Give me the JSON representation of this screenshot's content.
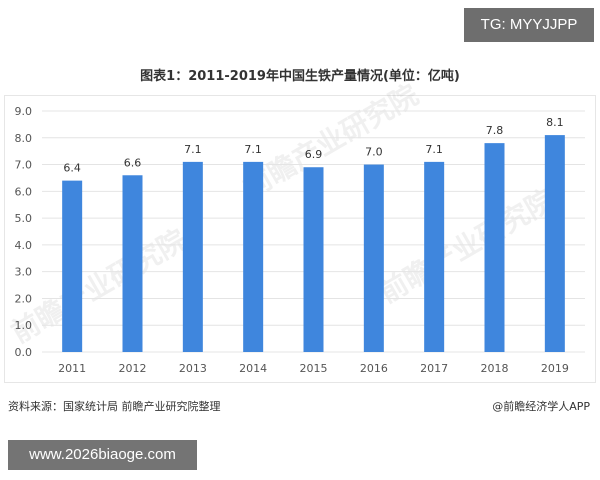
{
  "badges": {
    "telegram": "TG: MYYJJPP",
    "site": "www.2026biaoge.com"
  },
  "footer": {
    "source": "资料来源：国家统计局 前瞻产业研究院整理",
    "brand": "@前瞻经济学人APP"
  },
  "watermark": {
    "text": "前瞻产业研究院"
  },
  "colors": {
    "bar": "#3f86dd",
    "grid": "#e4e4e4",
    "axis_text": "#555555",
    "label_text": "#333333"
  },
  "chart_data": {
    "type": "bar",
    "title": "图表1：2011-2019年中国生铁产量情况(单位：亿吨)",
    "xlabel": "",
    "ylabel": "",
    "categories": [
      "2011",
      "2012",
      "2013",
      "2014",
      "2015",
      "2016",
      "2017",
      "2018",
      "2019"
    ],
    "values": [
      6.4,
      6.6,
      7.1,
      7.1,
      6.9,
      7.0,
      7.1,
      7.8,
      8.1
    ],
    "value_labels": [
      "6.4",
      "6.6",
      "7.1",
      "7.1",
      "6.9",
      "7.0",
      "7.1",
      "7.8",
      "8.1"
    ],
    "y_ticks": [
      "0.0",
      "1.0",
      "2.0",
      "3.0",
      "4.0",
      "5.0",
      "6.0",
      "7.0",
      "8.0",
      "9.0"
    ],
    "ylim": [
      0,
      9
    ],
    "grid": true,
    "legend": "none"
  }
}
